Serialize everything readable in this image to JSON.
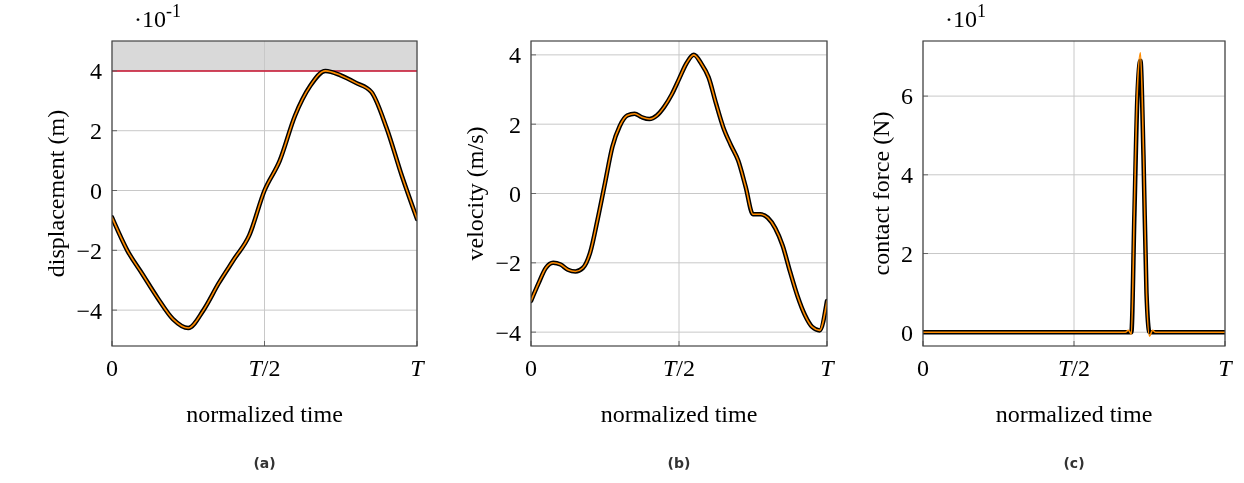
{
  "chart_data": [
    {
      "type": "line",
      "title": "(a)",
      "xlabel": "normalized time",
      "ylabel": "displacement (m)",
      "annotations": [
        "·10$^{-1}$"
      ],
      "categories": [
        "0",
        null,
        null,
        null,
        null,
        null,
        null,
        null,
        null,
        null,
        "T/2",
        null,
        null,
        null,
        null,
        null,
        null,
        null,
        null,
        null,
        "T"
      ],
      "ylim": [
        -5.2,
        5
      ],
      "yticks": [
        -4,
        -2,
        0,
        2,
        4
      ],
      "grid": true,
      "bands": [
        {
          "axis": "y",
          "from": 4,
          "to": 5,
          "color": "#d9d9d9"
        }
      ],
      "ref_lines": [
        {
          "axis": "y",
          "value": 4,
          "color": "#c8102e"
        }
      ],
      "series": [
        {
          "color": "#000000",
          "values": [
            -0.9,
            -2.0,
            -2.8,
            -3.6,
            -4.3,
            -4.6,
            -4.0,
            -3.1,
            -2.3,
            -1.5,
            0,
            1.0,
            2.5,
            3.5,
            4.0,
            3.85,
            3.6,
            3.3,
            2.1,
            0.5,
            -0.95
          ]
        },
        {
          "color": "#ff8c00",
          "values": [
            -0.9,
            -2.0,
            -2.8,
            -3.6,
            -4.3,
            -4.6,
            -4.0,
            -3.1,
            -2.3,
            -1.5,
            0,
            1.0,
            2.5,
            3.5,
            4.0,
            3.85,
            3.6,
            3.3,
            2.1,
            0.5,
            -0.95
          ]
        }
      ]
    },
    {
      "type": "line",
      "title": "(b)",
      "xlabel": "normalized time",
      "ylabel": "velocity (m/s)",
      "categories": [
        "0",
        null,
        null,
        null,
        null,
        null,
        null,
        null,
        null,
        null,
        null,
        null,
        null,
        null,
        null,
        null,
        null,
        null,
        null,
        null,
        "T/2",
        null,
        null,
        null,
        null,
        null,
        null,
        null,
        null,
        null,
        null,
        null,
        null,
        null,
        null,
        null,
        null,
        null,
        null,
        null,
        "T"
      ],
      "ylim": [
        -4.4,
        4.4
      ],
      "yticks": [
        -4,
        -2,
        0,
        2,
        4
      ],
      "grid": true,
      "series": [
        {
          "color": "#000000",
          "values": [
            -3.1,
            -2.6,
            -2.15,
            -2.0,
            -2.05,
            -2.2,
            -2.25,
            -2.15,
            -1.7,
            -0.75,
            0.3,
            1.35,
            1.95,
            2.25,
            2.3,
            2.2,
            2.15,
            2.25,
            2.5,
            2.85,
            3.3,
            3.75,
            4.0,
            3.75,
            3.35,
            2.6,
            1.9,
            1.4,
            0.95,
            0.2,
            -0.6,
            -0.6,
            -0.7,
            -1.0,
            -1.5,
            -2.25,
            -2.95,
            -3.5,
            -3.85,
            -3.95,
            -3.1
          ]
        },
        {
          "color": "#ff8c00",
          "values": [
            -3.1,
            -2.6,
            -2.15,
            -2.0,
            -2.05,
            -2.2,
            -2.25,
            -2.15,
            -1.7,
            -0.75,
            0.3,
            1.35,
            1.95,
            2.25,
            2.3,
            2.2,
            2.15,
            2.25,
            2.5,
            2.85,
            3.3,
            3.75,
            4.0,
            3.75,
            3.35,
            2.6,
            1.9,
            1.4,
            0.95,
            0.2,
            -0.6,
            -0.6,
            -0.7,
            -1.0,
            -1.5,
            -2.25,
            -2.95,
            -3.5,
            -3.85,
            -3.95,
            -3.1
          ]
        }
      ]
    },
    {
      "type": "line",
      "title": "(c)",
      "xlabel": "normalized time",
      "ylabel": "contact force (N)",
      "annotations": [
        "·10$^{1}$"
      ],
      "categories": [
        "0",
        null,
        null,
        null,
        null,
        null,
        null,
        null,
        null,
        null,
        null,
        null,
        null,
        null,
        null,
        null,
        null,
        null,
        null,
        null,
        null,
        null,
        null,
        null,
        null,
        null,
        null,
        null,
        null,
        null,
        null,
        null,
        null,
        null,
        null,
        null,
        null,
        null,
        null,
        null,
        null,
        null,
        null,
        null,
        null,
        null,
        null,
        null,
        null,
        null,
        "T/2",
        null,
        null,
        null,
        null,
        null,
        null,
        null,
        null,
        null,
        null,
        null,
        null,
        null,
        null,
        null,
        null,
        null,
        null,
        null,
        null,
        null,
        null,
        null,
        null,
        null,
        null,
        null,
        null,
        null,
        null,
        null,
        null,
        null,
        null,
        null,
        null,
        null,
        null,
        null,
        null,
        null,
        null,
        null,
        null,
        null,
        null,
        null,
        null,
        null,
        "T"
      ],
      "ylim": [
        -0.35,
        7.4
      ],
      "yticks": [
        0,
        2,
        4,
        6
      ],
      "grid": true,
      "series": [
        {
          "color": "#000000",
          "values": [
            0,
            0,
            0,
            0,
            0,
            0,
            0,
            0,
            0,
            0,
            0,
            0,
            0,
            0,
            0,
            0,
            0,
            0,
            0,
            0,
            0,
            0,
            0,
            0,
            0,
            0,
            0,
            0,
            0,
            0,
            0,
            0,
            0,
            0,
            0,
            0,
            0,
            0,
            0,
            0,
            0,
            0,
            0,
            0,
            0,
            0,
            0,
            0,
            0,
            0,
            0,
            0,
            0,
            0,
            0,
            0,
            0,
            0,
            0,
            0,
            0,
            0,
            0,
            0,
            0,
            0,
            0,
            0,
            0,
            0,
            3.0,
            6.0,
            6.9,
            4.5,
            1.0,
            0,
            0,
            0,
            0,
            0,
            0,
            0,
            0,
            0,
            0,
            0,
            0,
            0,
            0,
            0,
            0,
            0,
            0,
            0,
            0,
            0,
            0,
            0,
            0,
            0,
            0
          ]
        },
        {
          "color": "#ff8c00",
          "values": [
            0,
            0,
            0,
            0,
            0,
            0,
            0,
            0,
            0,
            0,
            0,
            0,
            0,
            0,
            0,
            0,
            0,
            0,
            0,
            0,
            0,
            0,
            0,
            0,
            0,
            0,
            0,
            0,
            0,
            0,
            0,
            0,
            0,
            0,
            0,
            0,
            0,
            0,
            0,
            0,
            0,
            0,
            0,
            0,
            0,
            0,
            0,
            0,
            0,
            0,
            0,
            0,
            0,
            0,
            0,
            0,
            0,
            0,
            0,
            0,
            0,
            0,
            0,
            0,
            0,
            0,
            0,
            0,
            0.05,
            -0.05,
            3.2,
            6.2,
            7.1,
            4.6,
            1.0,
            -0.1,
            0.05,
            0,
            0,
            0,
            0,
            0,
            0,
            0,
            0,
            0,
            0,
            0,
            0,
            0,
            0,
            0,
            0,
            0,
            0,
            0,
            0,
            0,
            0,
            0,
            0
          ]
        }
      ]
    }
  ]
}
